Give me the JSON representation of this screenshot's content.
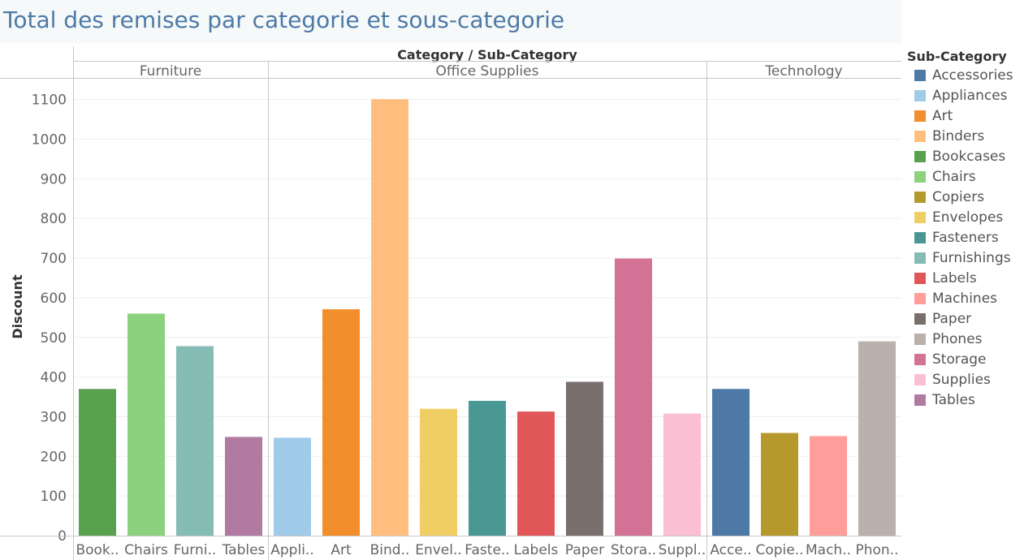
{
  "title": "Total des remises par categorie et sous-categorie",
  "legend": {
    "title": "Sub-Category",
    "items": [
      {
        "label": "Accessories",
        "color": "#4e79a7"
      },
      {
        "label": "Appliances",
        "color": "#a0cbe8"
      },
      {
        "label": "Art",
        "color": "#f28e2b"
      },
      {
        "label": "Binders",
        "color": "#ffbe7d"
      },
      {
        "label": "Bookcases",
        "color": "#59a14f"
      },
      {
        "label": "Chairs",
        "color": "#8cd17d"
      },
      {
        "label": "Copiers",
        "color": "#b6992d"
      },
      {
        "label": "Envelopes",
        "color": "#f1ce63"
      },
      {
        "label": "Fasteners",
        "color": "#499894"
      },
      {
        "label": "Furnishings",
        "color": "#86bcb6"
      },
      {
        "label": "Labels",
        "color": "#e15759"
      },
      {
        "label": "Machines",
        "color": "#ff9d9a"
      },
      {
        "label": "Paper",
        "color": "#79706e"
      },
      {
        "label": "Phones",
        "color": "#bab0ac"
      },
      {
        "label": "Storage",
        "color": "#d37295"
      },
      {
        "label": "Supplies",
        "color": "#fabfd2"
      },
      {
        "label": "Tables",
        "color": "#b07aa1"
      }
    ]
  },
  "chart_data": {
    "type": "bar",
    "title": "Total des remises par categorie et sous-categorie",
    "header": "Category / Sub-Category",
    "ylabel": "Discount",
    "ylim": [
      0,
      1100
    ],
    "yticks": [
      0,
      100,
      200,
      300,
      400,
      500,
      600,
      700,
      800,
      900,
      1000,
      1100
    ],
    "grid": true,
    "legend_position": "right",
    "groups": [
      {
        "name": "Furniture",
        "bars": [
          {
            "label": "Book..",
            "sub_category": "Bookcases",
            "value": 370
          },
          {
            "label": "Chairs",
            "sub_category": "Chairs",
            "value": 560
          },
          {
            "label": "Furni..",
            "sub_category": "Furnishings",
            "value": 478
          },
          {
            "label": "Tables",
            "sub_category": "Tables",
            "value": 249
          }
        ]
      },
      {
        "name": "Office Supplies",
        "bars": [
          {
            "label": "Appli..",
            "sub_category": "Appliances",
            "value": 247
          },
          {
            "label": "Art",
            "sub_category": "Art",
            "value": 571
          },
          {
            "label": "Bind..",
            "sub_category": "Binders",
            "value": 1101
          },
          {
            "label": "Envel..",
            "sub_category": "Envelopes",
            "value": 320
          },
          {
            "label": "Faste..",
            "sub_category": "Fasteners",
            "value": 340
          },
          {
            "label": "Labels",
            "sub_category": "Labels",
            "value": 313
          },
          {
            "label": "Paper",
            "sub_category": "Paper",
            "value": 388
          },
          {
            "label": "Stora..",
            "sub_category": "Storage",
            "value": 699
          },
          {
            "label": "Suppl..",
            "sub_category": "Supplies",
            "value": 308
          }
        ]
      },
      {
        "name": "Technology",
        "bars": [
          {
            "label": "Acce..",
            "sub_category": "Accessories",
            "value": 370
          },
          {
            "label": "Copie..",
            "sub_category": "Copiers",
            "value": 259
          },
          {
            "label": "Mach..",
            "sub_category": "Machines",
            "value": 251
          },
          {
            "label": "Phon..",
            "sub_category": "Phones",
            "value": 490
          }
        ]
      }
    ]
  }
}
